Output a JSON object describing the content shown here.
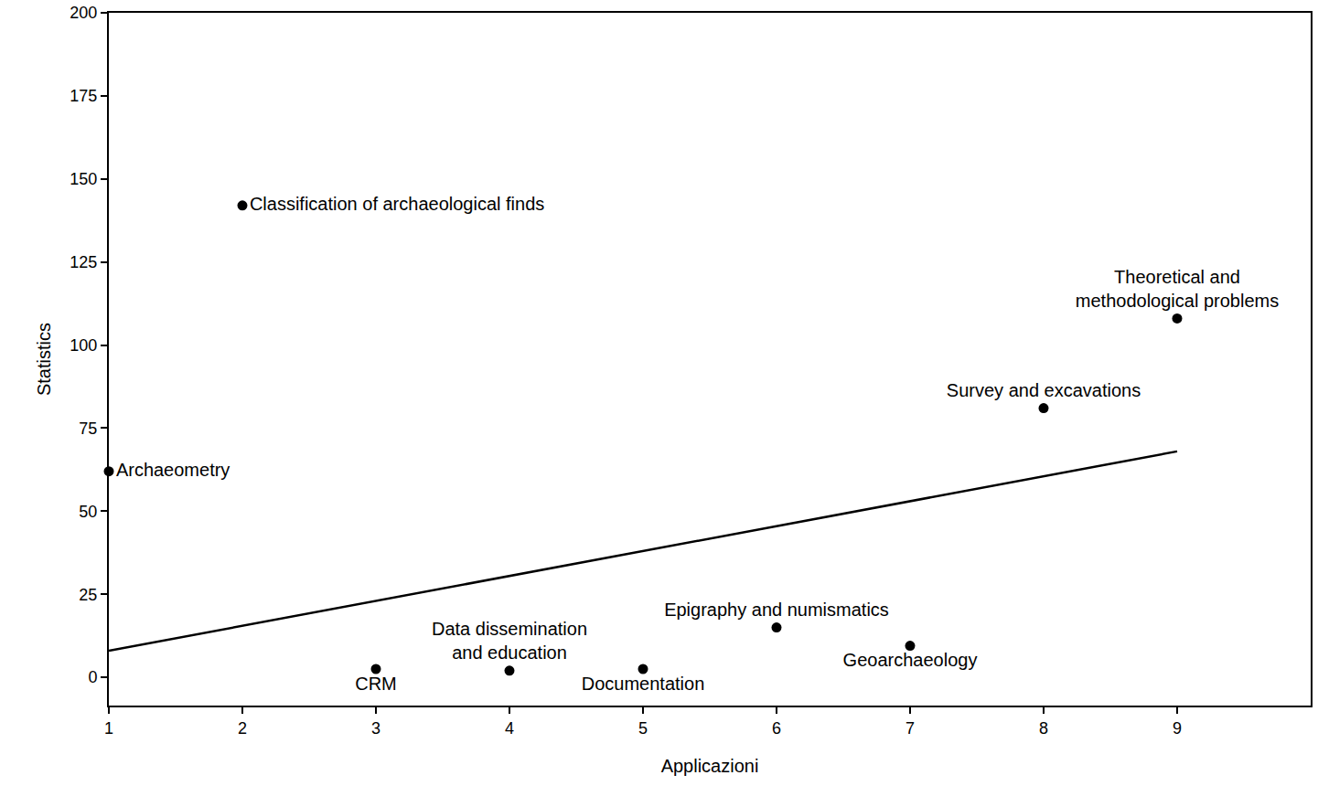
{
  "chart_data": {
    "type": "scatter",
    "x_label": "Applicazioni",
    "y_label": "Statistics",
    "x": [
      1,
      2,
      3,
      4,
      5,
      6,
      7,
      8,
      9
    ],
    "values": [
      62,
      142,
      2.5,
      2,
      2.5,
      15,
      9.5,
      81,
      108
    ],
    "labels": [
      "Archaeometry",
      "Classification of archaeological finds",
      "CRM",
      "Data dissemination\nand education",
      "Documentation",
      "Epigraphy and numismatics",
      "Geoarchaeology",
      "Survey and excavations",
      "Theoretical and\nmethodological problems"
    ],
    "trend_line": {
      "x": [
        1,
        9
      ],
      "values": [
        8,
        68
      ]
    },
    "color": "#000000",
    "marker": "circle",
    "line_style": "solid",
    "xlim": [
      1,
      10
    ],
    "xticks": [
      1,
      2,
      3,
      4,
      5,
      6,
      7,
      8,
      9
    ],
    "ylim": [
      -8.5,
      200
    ],
    "yticks": [
      0,
      25,
      50,
      75,
      100,
      125,
      150,
      175,
      200
    ],
    "grid": false
  }
}
